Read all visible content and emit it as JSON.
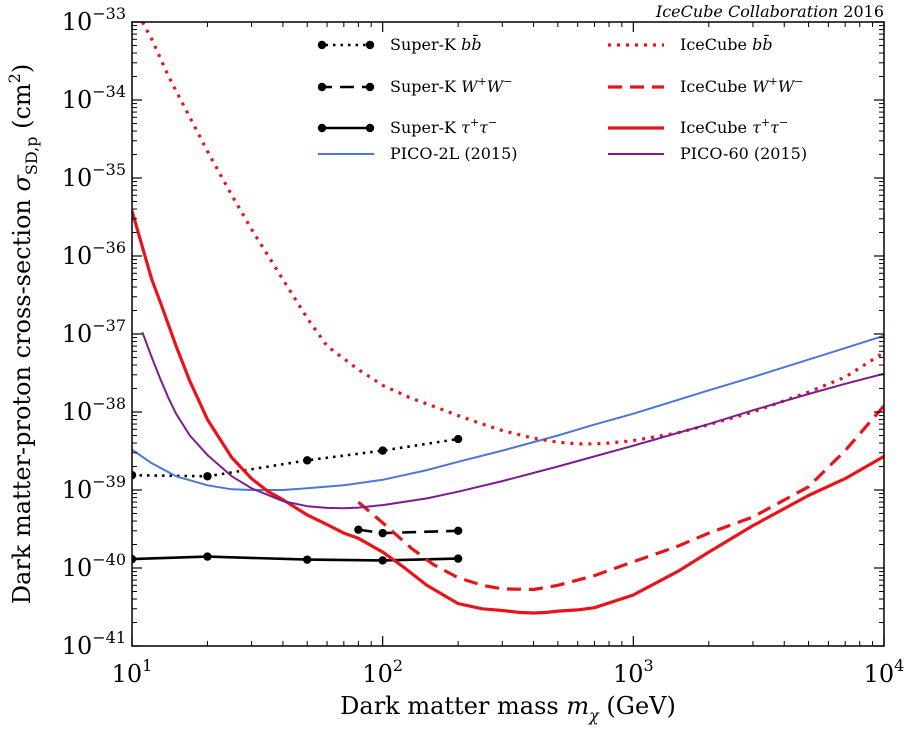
{
  "chart_data": {
    "type": "line",
    "title": "",
    "credit": {
      "italic": "IceCube Collaboration",
      "plain": "2016"
    },
    "xlabel": {
      "prefix": "Dark matter mass ",
      "symbol": "m",
      "sub": "χ",
      "suffix": " (GeV)"
    },
    "ylabel": {
      "prefix": "Dark matter-proton cross-section ",
      "symbol": "σ",
      "sub": "SD,p",
      "suffix": " (cm",
      "sup": "2",
      "close": ")"
    },
    "xscale": "log",
    "yscale": "log",
    "xlim": [
      10,
      10000
    ],
    "ylim": [
      1e-41,
      1e-33
    ],
    "xticks": [
      {
        "value": 10,
        "base": "10",
        "exp": "1"
      },
      {
        "value": 100,
        "base": "10",
        "exp": "2"
      },
      {
        "value": 1000,
        "base": "10",
        "exp": "3"
      },
      {
        "value": 10000,
        "base": "10",
        "exp": "4"
      }
    ],
    "yticks": [
      {
        "value": 1e-41,
        "base": "10",
        "exp": "−41"
      },
      {
        "value": 1e-40,
        "base": "10",
        "exp": "−40"
      },
      {
        "value": 1e-39,
        "base": "10",
        "exp": "−39"
      },
      {
        "value": 1e-38,
        "base": "10",
        "exp": "−38"
      },
      {
        "value": 1e-37,
        "base": "10",
        "exp": "−37"
      },
      {
        "value": 1e-36,
        "base": "10",
        "exp": "−36"
      },
      {
        "value": 1e-35,
        "base": "10",
        "exp": "−35"
      },
      {
        "value": 1e-34,
        "base": "10",
        "exp": "−34"
      },
      {
        "value": 1e-33,
        "base": "10",
        "exp": "−33"
      }
    ],
    "grid": false,
    "legend_position": "top",
    "series": [
      {
        "name": "Super-K bb̄",
        "label": {
          "text": "Super-K ",
          "symbol": "b",
          "sup": "",
          "symbol2": "b̄",
          "sup2": ""
        },
        "color": "#000000",
        "style": "dotted",
        "markers": true,
        "x": [
          10,
          20,
          50,
          100,
          200
        ],
        "y": [
          1.55e-39,
          1.5e-39,
          2.4e-39,
          3.2e-39,
          4.5e-39
        ]
      },
      {
        "name": "Super-K W+W−",
        "label": {
          "text": "Super-K ",
          "symbol": "W",
          "sup": "+",
          "symbol2": "W",
          "sup2": "−"
        },
        "color": "#000000",
        "style": "dashed",
        "markers": true,
        "x": [
          80,
          100,
          200
        ],
        "y": [
          3.1e-40,
          2.8e-40,
          3e-40
        ]
      },
      {
        "name": "Super-K τ+τ−",
        "label": {
          "text": "Super-K ",
          "symbol": "τ",
          "sup": "+",
          "symbol2": "τ",
          "sup2": "−"
        },
        "color": "#000000",
        "style": "solid",
        "markers": true,
        "x": [
          10,
          20,
          50,
          100,
          200
        ],
        "y": [
          1.3e-40,
          1.4e-40,
          1.28e-40,
          1.25e-40,
          1.32e-40
        ]
      },
      {
        "name": "PICO-2L (2015)",
        "label": {
          "text": "PICO-2L (2015)",
          "symbol": "",
          "sup": "",
          "symbol2": "",
          "sup2": ""
        },
        "color": "#4a77d8",
        "style": "solid",
        "markers": false,
        "x": [
          10,
          12,
          15,
          20,
          25,
          30,
          40,
          50,
          70,
          100,
          150,
          200,
          300,
          500,
          700,
          1000,
          2000,
          3000,
          5000,
          7000,
          10000
        ],
        "y": [
          3.3e-39,
          2.2e-39,
          1.5e-39,
          1.15e-39,
          1.02e-39,
          1e-39,
          1e-39,
          1.05e-39,
          1.15e-39,
          1.35e-39,
          1.8e-39,
          2.3e-39,
          3.2e-39,
          5e-39,
          6.9e-39,
          9.5e-39,
          1.9e-38,
          2.8e-38,
          4.7e-38,
          6.6e-38,
          9.5e-38
        ]
      },
      {
        "name": "IceCube bb̄",
        "label": {
          "text": "IceCube ",
          "symbol": "b",
          "sup": "",
          "symbol2": "b̄",
          "sup2": ""
        },
        "color": "#e8141a",
        "style": "dotted",
        "markers": false,
        "x": [
          11,
          12,
          14,
          17,
          20,
          25,
          30,
          40,
          50,
          60,
          80,
          100,
          130,
          170,
          200,
          250,
          300,
          400,
          500,
          600,
          700,
          800,
          1000,
          1500,
          2000,
          3000,
          5000,
          7000,
          10000
        ],
        "y": [
          1e-33,
          6e-34,
          2e-34,
          6e-35,
          2.2e-35,
          6e-36,
          2.2e-36,
          5e-37,
          1.6e-37,
          7e-38,
          3.5e-38,
          2.2e-38,
          1.5e-38,
          1.1e-38,
          9e-39,
          7e-39,
          5.8e-39,
          4.6e-39,
          4.1e-39,
          3.9e-39,
          3.9e-39,
          4e-39,
          4.3e-39,
          5.4e-39,
          6.9e-39,
          1e-38,
          1.8e-38,
          2.8e-38,
          5.8e-38
        ]
      },
      {
        "name": "IceCube W+W−",
        "label": {
          "text": "IceCube ",
          "symbol": "W",
          "sup": "+",
          "symbol2": "W",
          "sup2": "−"
        },
        "color": "#e8141a",
        "style": "dashed",
        "markers": false,
        "x": [
          80,
          100,
          130,
          160,
          200,
          250,
          300,
          400,
          500,
          700,
          1000,
          1500,
          2000,
          3000,
          5000,
          7000,
          10000
        ],
        "y": [
          7e-40,
          3.8e-40,
          1.8e-40,
          1.1e-40,
          7.5e-41,
          6e-41,
          5.4e-41,
          5.3e-41,
          6e-41,
          8e-41,
          1.2e-40,
          1.9e-40,
          2.8e-40,
          4.5e-40,
          1.1e-39,
          3.2e-39,
          1.2e-38
        ]
      },
      {
        "name": "IceCube τ+τ−",
        "label": {
          "text": "IceCube ",
          "symbol": "τ",
          "sup": "+",
          "symbol2": "τ",
          "sup2": "−"
        },
        "color": "#e8141a",
        "style": "solid",
        "markers": false,
        "x": [
          10,
          11,
          12,
          13,
          15,
          17,
          20,
          25,
          30,
          35,
          40,
          50,
          60,
          70,
          80,
          100,
          120,
          150,
          200,
          250,
          300,
          350,
          400,
          450,
          500,
          600,
          700,
          1000,
          1500,
          2000,
          3000,
          5000,
          7000,
          10000
        ],
        "y": [
          3.8e-36,
          1.3e-36,
          5e-37,
          2.5e-37,
          7e-38,
          2.5e-38,
          8e-39,
          2.6e-39,
          1.4e-39,
          9.5e-40,
          7.5e-40,
          4.8e-40,
          3.6e-40,
          2.8e-40,
          2.4e-40,
          1.6e-40,
          1.05e-40,
          6e-41,
          3.5e-41,
          3e-41,
          2.85e-41,
          2.7e-41,
          2.65e-41,
          2.7e-41,
          2.8e-41,
          2.9e-41,
          3.1e-41,
          4.5e-41,
          9e-41,
          1.6e-40,
          3.5e-40,
          8.5e-40,
          1.4e-39,
          2.7e-39
        ]
      },
      {
        "name": "PICO-60 (2015)",
        "label": {
          "text": "PICO-60 (2015)",
          "symbol": "",
          "sup": "",
          "symbol2": "",
          "sup2": ""
        },
        "color": "#7b1e8c",
        "style": "solid",
        "markers": false,
        "x": [
          11,
          12,
          13,
          14,
          15,
          17,
          20,
          25,
          30,
          40,
          50,
          60,
          70,
          80,
          100,
          150,
          200,
          300,
          500,
          700,
          1000,
          2000,
          3000,
          5000,
          7000,
          10000
        ],
        "y": [
          1.05e-37,
          5e-38,
          2.6e-38,
          1.5e-38,
          9.5e-39,
          5e-39,
          2.8e-39,
          1.5e-39,
          1.05e-39,
          7.2e-40,
          6.2e-40,
          5.9e-40,
          5.85e-40,
          5.95e-40,
          6.4e-40,
          7.8e-40,
          9.5e-40,
          1.3e-39,
          2e-39,
          2.7e-39,
          3.7e-39,
          7e-39,
          1.05e-38,
          1.7e-38,
          2.3e-38,
          3.1e-38
        ]
      }
    ]
  }
}
